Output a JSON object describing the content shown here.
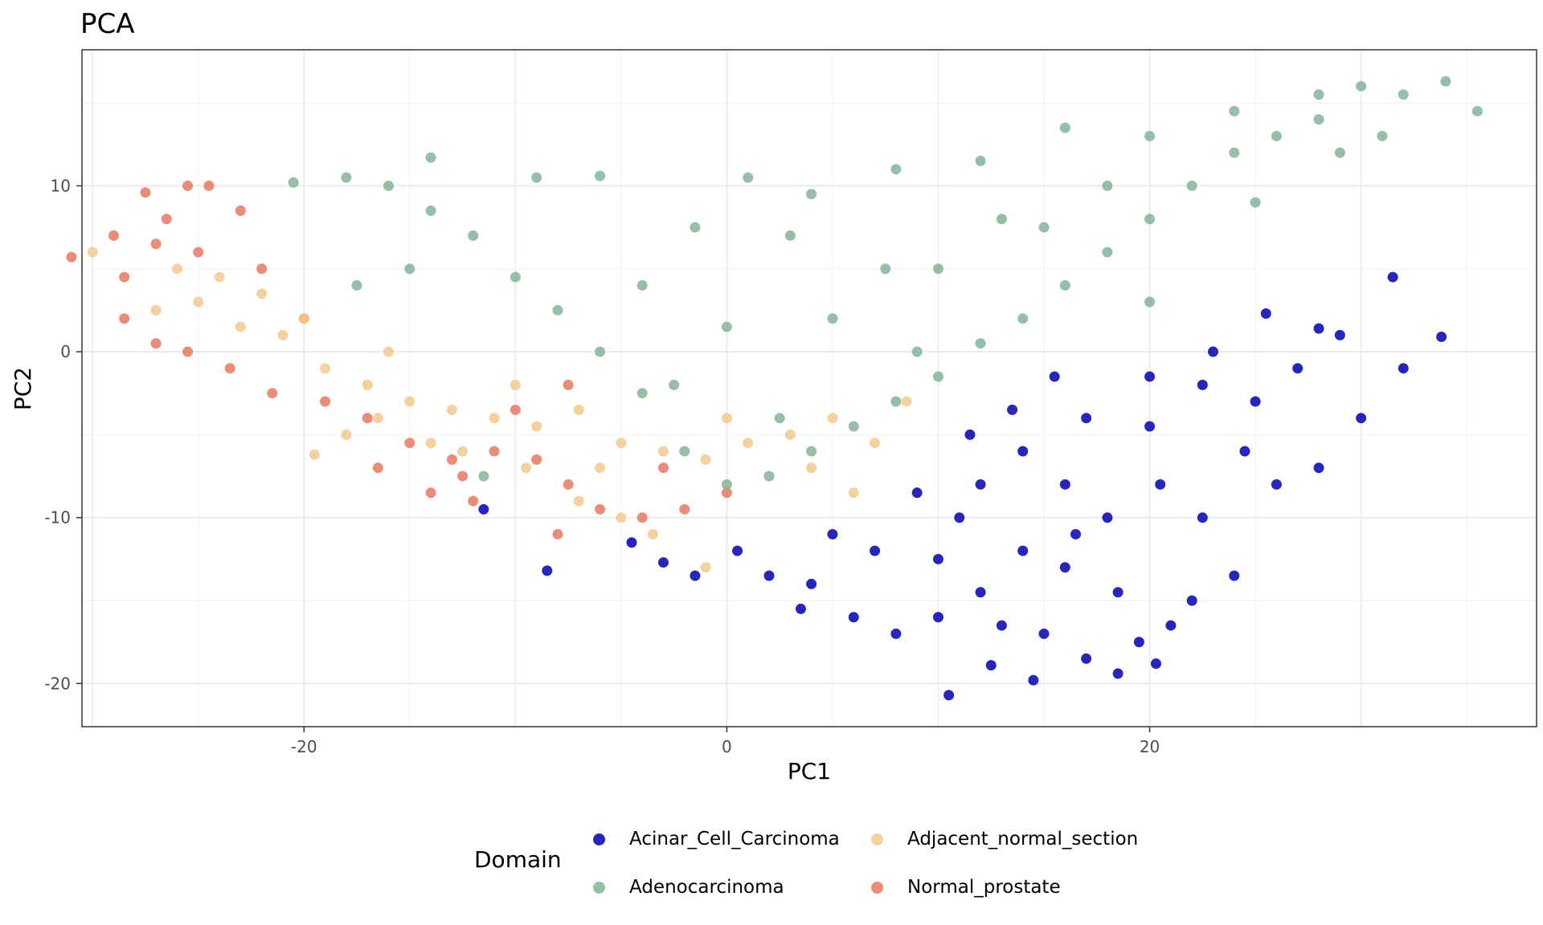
{
  "chart_data": {
    "type": "scatter",
    "title": "PCA",
    "xlabel": "PC1",
    "ylabel": "PC2",
    "xlim": [
      -30.5,
      38.3
    ],
    "ylim": [
      -22.6,
      18.2
    ],
    "xticks": [
      -20,
      0,
      20
    ],
    "yticks": [
      -20,
      -10,
      0,
      10
    ],
    "grid": true,
    "legend": {
      "title": "Domain",
      "position": "bottom"
    },
    "series": [
      {
        "name": "Acinar_Cell_Carcinoma",
        "color": "#0000b4",
        "points": [
          [
            25.5,
            2.3
          ],
          [
            31.5,
            4.5
          ],
          [
            33.8,
            0.9
          ],
          [
            28.0,
            1.4
          ],
          [
            22.5,
            -2.0
          ],
          [
            20.0,
            -4.5
          ],
          [
            16.0,
            -8.0
          ],
          [
            14.0,
            -12.0
          ],
          [
            12.0,
            -14.5
          ],
          [
            10.0,
            -16.0
          ],
          [
            8.0,
            -17.0
          ],
          [
            6.0,
            -16.0
          ],
          [
            4.0,
            -14.0
          ],
          [
            2.0,
            -13.5
          ],
          [
            0.5,
            -12.0
          ],
          [
            -1.5,
            -13.5
          ],
          [
            -3.0,
            -12.7
          ],
          [
            -4.5,
            -11.5
          ],
          [
            -8.5,
            -13.2
          ],
          [
            -11.5,
            -9.5
          ],
          [
            10.5,
            -20.7
          ],
          [
            14.5,
            -19.8
          ],
          [
            18.5,
            -19.4
          ],
          [
            20.3,
            -18.8
          ],
          [
            17.0,
            -18.5
          ],
          [
            12.5,
            -18.9
          ],
          [
            26.0,
            -8.0
          ],
          [
            28.0,
            -7.0
          ],
          [
            30.0,
            -4.0
          ],
          [
            32.0,
            -1.0
          ],
          [
            24.0,
            -13.5
          ],
          [
            22.0,
            -15.0
          ],
          [
            21.0,
            -16.5
          ],
          [
            19.5,
            -17.5
          ],
          [
            15.0,
            -17.0
          ],
          [
            13.0,
            -16.5
          ],
          [
            11.0,
            -10.0
          ],
          [
            14.0,
            -6.0
          ],
          [
            17.0,
            -4.0
          ],
          [
            20.0,
            -1.5
          ],
          [
            23.0,
            0.0
          ],
          [
            25.0,
            -3.0
          ],
          [
            27.0,
            -1.0
          ],
          [
            29.0,
            1.0
          ],
          [
            18.0,
            -10.0
          ],
          [
            16.0,
            -13.0
          ],
          [
            9.0,
            -8.5
          ],
          [
            11.5,
            -5.0
          ],
          [
            20.5,
            -8.0
          ],
          [
            22.5,
            -10.0
          ],
          [
            24.5,
            -6.0
          ],
          [
            7.0,
            -12.0
          ],
          [
            5.0,
            -11.0
          ],
          [
            3.5,
            -15.5
          ],
          [
            13.5,
            -3.5
          ],
          [
            15.5,
            -1.5
          ],
          [
            18.5,
            -14.5
          ],
          [
            16.5,
            -11.0
          ],
          [
            12.0,
            -8.0
          ],
          [
            10.0,
            -12.5
          ]
        ]
      },
      {
        "name": "Adenocarcinoma",
        "color": "#82b496",
        "points": [
          [
            35.5,
            14.5
          ],
          [
            34.0,
            16.3
          ],
          [
            32.0,
            15.5
          ],
          [
            30.0,
            16.0
          ],
          [
            28.0,
            14.0
          ],
          [
            26.0,
            13.0
          ],
          [
            24.0,
            12.0
          ],
          [
            22.0,
            10.0
          ],
          [
            20.0,
            8.0
          ],
          [
            18.0,
            6.0
          ],
          [
            16.0,
            4.0
          ],
          [
            14.0,
            2.0
          ],
          [
            12.0,
            0.5
          ],
          [
            10.0,
            -1.5
          ],
          [
            8.0,
            -3.0
          ],
          [
            6.0,
            -4.5
          ],
          [
            4.0,
            -6.0
          ],
          [
            2.0,
            -7.5
          ],
          [
            0.0,
            -8.0
          ],
          [
            -2.0,
            -6.0
          ],
          [
            -4.0,
            -2.5
          ],
          [
            -6.0,
            0.0
          ],
          [
            -8.0,
            2.5
          ],
          [
            -10.0,
            4.5
          ],
          [
            -12.0,
            7.0
          ],
          [
            -14.0,
            8.5
          ],
          [
            -16.0,
            10.0
          ],
          [
            -18.0,
            10.5
          ],
          [
            -20.5,
            10.2
          ],
          [
            -14.0,
            11.7
          ],
          [
            -9.0,
            10.5
          ],
          [
            -6.0,
            10.6
          ],
          [
            1.0,
            10.5
          ],
          [
            4.0,
            9.5
          ],
          [
            8.0,
            11.0
          ],
          [
            12.0,
            11.5
          ],
          [
            16.0,
            13.5
          ],
          [
            20.0,
            13.0
          ],
          [
            24.0,
            14.5
          ],
          [
            28.0,
            15.5
          ],
          [
            31.0,
            13.0
          ],
          [
            20.0,
            3.0
          ],
          [
            15.0,
            7.5
          ],
          [
            10.0,
            5.0
          ],
          [
            5.0,
            2.0
          ],
          [
            0.0,
            1.5
          ],
          [
            -4.0,
            4.0
          ],
          [
            -15.0,
            5.0
          ],
          [
            -17.5,
            4.0
          ],
          [
            -11.5,
            -7.5
          ],
          [
            7.5,
            5.0
          ],
          [
            3.0,
            7.0
          ],
          [
            -1.5,
            7.5
          ],
          [
            13.0,
            8.0
          ],
          [
            18.0,
            10.0
          ],
          [
            25.0,
            9.0
          ],
          [
            29.0,
            12.0
          ],
          [
            9.0,
            0.0
          ],
          [
            -2.5,
            -2.0
          ],
          [
            2.5,
            -4.0
          ]
        ]
      },
      {
        "name": "Adjacent_normal_section",
        "color": "#f5c88c",
        "points": [
          [
            -30.0,
            6.0
          ],
          [
            -27.0,
            2.5
          ],
          [
            -25.0,
            3.0
          ],
          [
            -23.0,
            1.5
          ],
          [
            -21.0,
            1.0
          ],
          [
            -19.0,
            -1.0
          ],
          [
            -17.0,
            -2.0
          ],
          [
            -15.0,
            -3.0
          ],
          [
            -13.0,
            -3.5
          ],
          [
            -11.0,
            -4.0
          ],
          [
            -9.0,
            -4.5
          ],
          [
            -7.0,
            -3.5
          ],
          [
            -5.0,
            -5.5
          ],
          [
            -3.0,
            -6.0
          ],
          [
            -1.0,
            -6.5
          ],
          [
            1.0,
            -5.5
          ],
          [
            3.0,
            -5.0
          ],
          [
            5.0,
            -4.0
          ],
          [
            7.0,
            -5.5
          ],
          [
            8.5,
            -3.0
          ],
          [
            -19.5,
            -6.2
          ],
          [
            -18.0,
            -5.0
          ],
          [
            -14.0,
            -5.5
          ],
          [
            -12.5,
            -6.0
          ],
          [
            -9.5,
            -7.0
          ],
          [
            -7.0,
            -9.0
          ],
          [
            -5.0,
            -10.0
          ],
          [
            -3.5,
            -11.0
          ],
          [
            -1.0,
            -13.0
          ],
          [
            -24.0,
            4.5
          ],
          [
            -22.0,
            3.5
          ],
          [
            -20.0,
            2.0
          ],
          [
            -16.0,
            0.0
          ],
          [
            -26.0,
            5.0
          ],
          [
            -10.0,
            -2.0
          ],
          [
            0.0,
            -4.0
          ],
          [
            4.0,
            -7.0
          ],
          [
            6.0,
            -8.5
          ],
          [
            -6.0,
            -7.0
          ],
          [
            -16.5,
            -4.0
          ]
        ]
      },
      {
        "name": "Normal_prostate",
        "color": "#e6785f",
        "points": [
          [
            -31.0,
            5.7
          ],
          [
            -29.0,
            7.0
          ],
          [
            -27.5,
            9.6
          ],
          [
            -25.5,
            10.0
          ],
          [
            -24.5,
            10.0
          ],
          [
            -23.0,
            8.5
          ],
          [
            -26.5,
            8.0
          ],
          [
            -28.5,
            4.5
          ],
          [
            -28.5,
            2.0
          ],
          [
            -27.0,
            0.5
          ],
          [
            -25.5,
            0.0
          ],
          [
            -23.5,
            -1.0
          ],
          [
            -21.5,
            -2.5
          ],
          [
            -19.0,
            -3.0
          ],
          [
            -17.0,
            -4.0
          ],
          [
            -15.0,
            -5.5
          ],
          [
            -13.0,
            -6.5
          ],
          [
            -11.0,
            -6.0
          ],
          [
            -9.0,
            -6.5
          ],
          [
            -7.5,
            -8.0
          ],
          [
            -6.0,
            -9.5
          ],
          [
            -4.0,
            -10.0
          ],
          [
            -2.0,
            -9.5
          ],
          [
            0.0,
            -8.5
          ],
          [
            -8.0,
            -11.0
          ],
          [
            -12.0,
            -9.0
          ],
          [
            -14.0,
            -8.5
          ],
          [
            -16.5,
            -7.0
          ],
          [
            -7.5,
            -2.0
          ],
          [
            -20.0,
            2.0
          ],
          [
            -25.0,
            6.0
          ],
          [
            -27.0,
            6.5
          ],
          [
            -22.0,
            5.0
          ],
          [
            -10.0,
            -3.5
          ],
          [
            -3.0,
            -7.0
          ],
          [
            -12.5,
            -7.5
          ]
        ]
      }
    ]
  }
}
